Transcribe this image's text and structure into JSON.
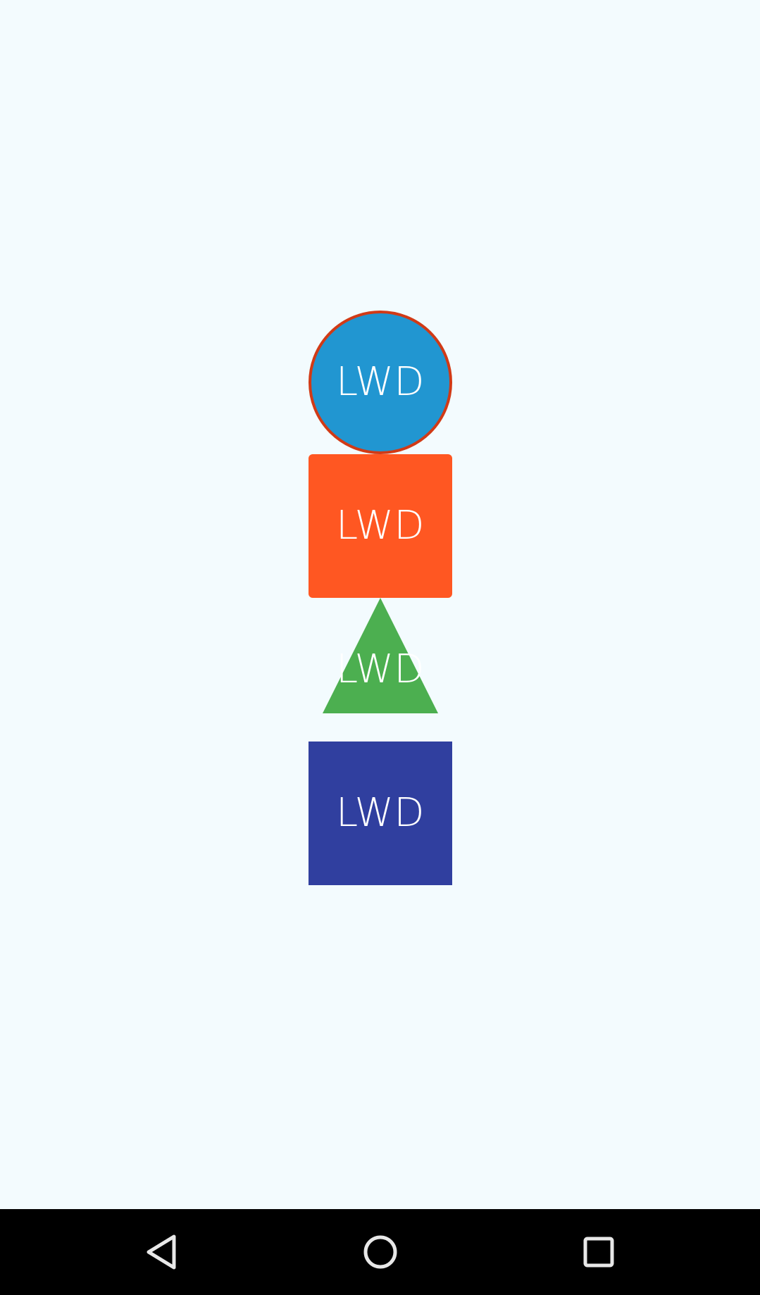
{
  "screen": {
    "background_color": "#f3fbfe"
  },
  "shapes": [
    {
      "kind": "circle",
      "label": "LWD",
      "fill_color": "#2196d1",
      "border_color": "#d13a16"
    },
    {
      "kind": "rounded-square",
      "label": "LWD",
      "fill_color": "#ff5722"
    },
    {
      "kind": "triangle",
      "label": "LWD",
      "fill_color": "#4caf50"
    },
    {
      "kind": "square",
      "label": "LWD",
      "fill_color": "#303f9f"
    }
  ],
  "nav_bar": {
    "background_color": "#000000",
    "icon_color": "#e8e8e8",
    "buttons": [
      {
        "icon": "back-icon"
      },
      {
        "icon": "home-icon"
      },
      {
        "icon": "recents-icon"
      }
    ]
  }
}
